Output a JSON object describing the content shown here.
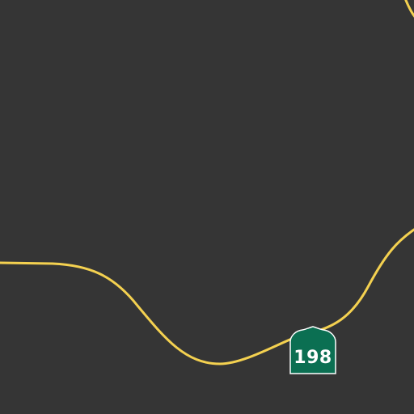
{
  "map": {
    "background_color": "#353535",
    "road_color": "#f4d150",
    "shield_color": "#0b6f52",
    "shield_border_color": "#ffffff",
    "shield_text_color": "#ffffff"
  },
  "roads": [
    {
      "name": "highway-198-road",
      "type": "state-highway"
    },
    {
      "name": "northeast-corner-road",
      "type": "road"
    }
  ],
  "shields": [
    {
      "route_number": "198",
      "style": "california-state-route"
    }
  ]
}
